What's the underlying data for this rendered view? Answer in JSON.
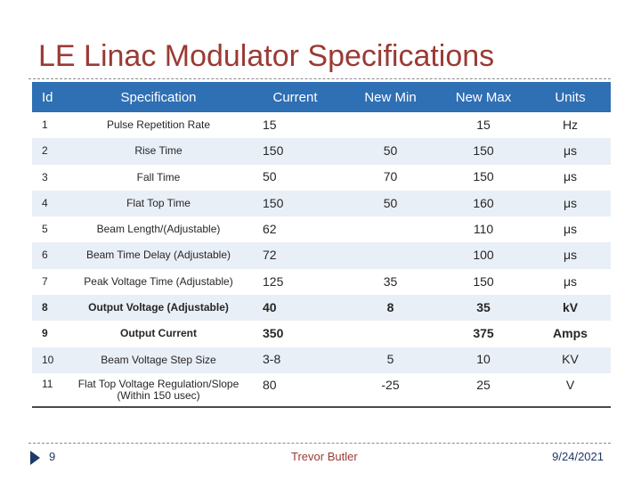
{
  "slide": {
    "title": "LE Linac Modulator Specifications",
    "page_number": "9",
    "author": "Trevor Butler",
    "date": "9/24/2021"
  },
  "table": {
    "headers": {
      "id": "Id",
      "specification": "Specification",
      "current": "Current",
      "new_min": "New Min",
      "new_max": "New Max",
      "units": "Units"
    },
    "rows": [
      {
        "id": "1",
        "spec": "Pulse Repetition Rate",
        "current": "15",
        "new_min": "",
        "new_max": "15",
        "units": "Hz"
      },
      {
        "id": "2",
        "spec": "Rise Time",
        "current": "150",
        "new_min": "50",
        "new_max": "150",
        "units": "μs"
      },
      {
        "id": "3",
        "spec": "Fall Time",
        "current": "50",
        "new_min": "70",
        "new_max": "150",
        "units": "μs"
      },
      {
        "id": "4",
        "spec": "Flat Top Time",
        "current": "150",
        "new_min": "50",
        "new_max": "160",
        "units": "μs"
      },
      {
        "id": "5",
        "spec": "Beam Length/(Adjustable)",
        "current": "62",
        "new_min": "",
        "new_max": "110",
        "units": "μs"
      },
      {
        "id": "6",
        "spec": "Beam Time Delay (Adjustable)",
        "current": "72",
        "new_min": "",
        "new_max": "100",
        "units": "μs"
      },
      {
        "id": "7",
        "spec": "Peak Voltage Time (Adjustable)",
        "current": "125",
        "new_min": "35",
        "new_max": "150",
        "units": "μs"
      },
      {
        "id": "8",
        "spec": "Output Voltage (Adjustable)",
        "current": "40",
        "new_min": "8",
        "new_max": "35",
        "units": "kV"
      },
      {
        "id": "9",
        "spec": "Output Current",
        "current": "350",
        "new_min": "",
        "new_max": "375",
        "units": "Amps"
      },
      {
        "id": "10",
        "spec": "Beam Voltage Step Size",
        "current": "3-8",
        "new_min": "5",
        "new_max": "10",
        "units": "KV"
      },
      {
        "id": "11",
        "spec": "Flat Top Voltage Regulation/Slope (Within 150 usec)",
        "current": "80",
        "new_min": "-25",
        "new_max": "25",
        "units": "V"
      }
    ]
  },
  "colors": {
    "title": "#9b3a34",
    "header_bg": "#2f6fb3",
    "band_bg": "#e9eff7",
    "footer_accent": "#1f3a66"
  }
}
